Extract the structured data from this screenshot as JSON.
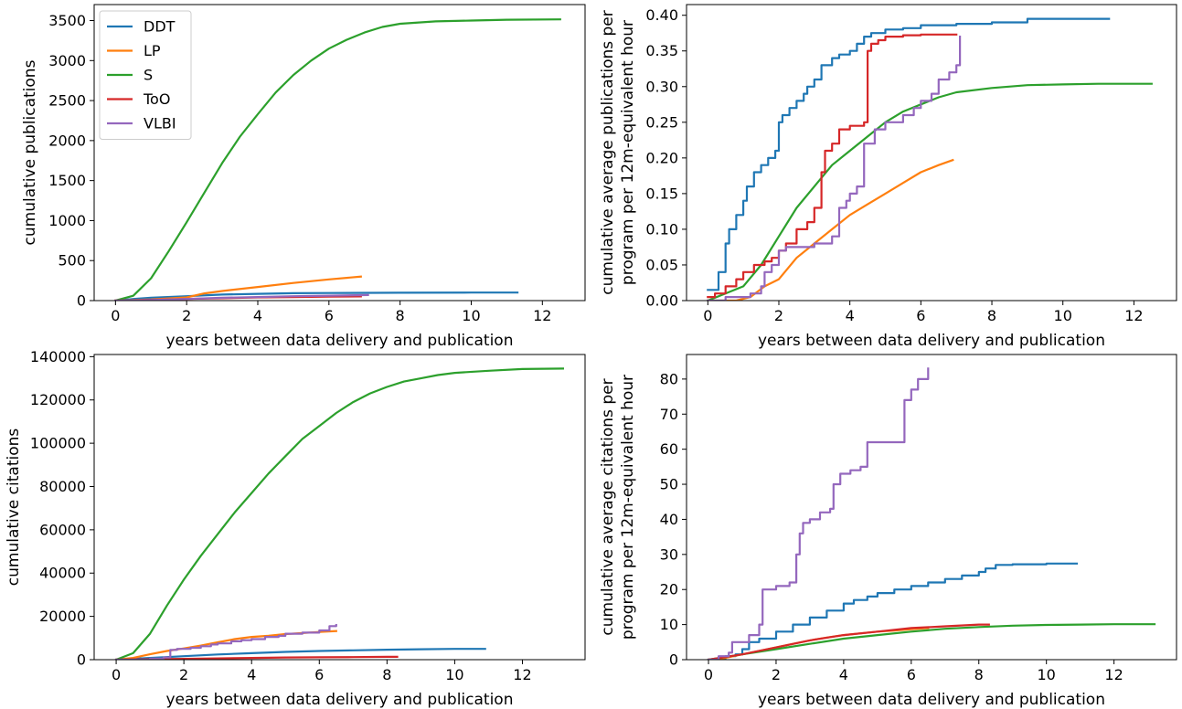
{
  "chart_data": [
    {
      "type": "line",
      "xlabel": "years between data delivery and publication",
      "ylabel": [
        "cumulative publications"
      ],
      "xlim": [
        -0.6,
        13.2
      ],
      "ylim": [
        0,
        3700
      ],
      "xticks": [
        0,
        2,
        4,
        6,
        8,
        10,
        12
      ],
      "xtick_labels": [
        "0",
        "2",
        "4",
        "6",
        "8",
        "10",
        "12"
      ],
      "yticks": [
        0,
        500,
        1000,
        1500,
        2000,
        2500,
        3000,
        3500
      ],
      "ytick_labels": [
        "0",
        "500",
        "1000",
        "1500",
        "2000",
        "2500",
        "3000",
        "3500"
      ],
      "legend": {
        "position": "top-left"
      },
      "series": [
        {
          "name": "DDT",
          "color": "#1f77b4",
          "step": false,
          "x": [
            0,
            0.5,
            1,
            2,
            3,
            4,
            5,
            6,
            8,
            10,
            11.3
          ],
          "y": [
            0,
            20,
            35,
            55,
            75,
            85,
            92,
            95,
            98,
            100,
            100
          ]
        },
        {
          "name": "LP",
          "color": "#ff7f0e",
          "step": false,
          "x": [
            0,
            1,
            2,
            2.5,
            3,
            4,
            5,
            6,
            6.9
          ],
          "y": [
            0,
            15,
            40,
            90,
            120,
            170,
            220,
            265,
            300
          ]
        },
        {
          "name": "S",
          "color": "#2ca02c",
          "step": false,
          "x": [
            0,
            0.5,
            1,
            1.5,
            2,
            2.5,
            3,
            3.5,
            4,
            4.5,
            5,
            5.5,
            6,
            6.5,
            7,
            7.5,
            8,
            9,
            10,
            11,
            12.5
          ],
          "y": [
            0,
            60,
            280,
            620,
            980,
            1350,
            1720,
            2050,
            2330,
            2600,
            2820,
            3000,
            3150,
            3260,
            3350,
            3420,
            3460,
            3490,
            3500,
            3510,
            3515
          ]
        },
        {
          "name": "ToO",
          "color": "#d62728",
          "step": false,
          "x": [
            0,
            1,
            2,
            3,
            4,
            5,
            6,
            6.9
          ],
          "y": [
            0,
            10,
            20,
            30,
            40,
            45,
            50,
            52
          ]
        },
        {
          "name": "VLBI",
          "color": "#9467bd",
          "step": false,
          "x": [
            0,
            1,
            2,
            3,
            4,
            5,
            6,
            7.1
          ],
          "y": [
            0,
            8,
            20,
            35,
            45,
            55,
            62,
            70
          ]
        }
      ]
    },
    {
      "type": "line",
      "xlabel": "years between data delivery and publication",
      "ylabel": [
        "cumulative average publications per",
        "program per 12m-equivalent hour"
      ],
      "xlim": [
        -0.6,
        13.2
      ],
      "ylim": [
        0,
        0.415
      ],
      "xticks": [
        0,
        2,
        4,
        6,
        8,
        10,
        12
      ],
      "xtick_labels": [
        "0",
        "2",
        "4",
        "6",
        "8",
        "10",
        "12"
      ],
      "yticks": [
        0,
        0.05,
        0.1,
        0.15,
        0.2,
        0.25,
        0.3,
        0.35,
        0.4
      ],
      "ytick_labels": [
        "0.00",
        "0.05",
        "0.10",
        "0.15",
        "0.20",
        "0.25",
        "0.30",
        "0.35",
        "0.40"
      ],
      "series": [
        {
          "name": "DDT",
          "color": "#1f77b4",
          "step": true,
          "x": [
            0,
            0.3,
            0.5,
            0.6,
            0.8,
            1.0,
            1.1,
            1.3,
            1.5,
            1.7,
            1.9,
            2.0,
            2.1,
            2.3,
            2.5,
            2.7,
            2.8,
            3.0,
            3.2,
            3.5,
            3.7,
            4.0,
            4.2,
            4.4,
            4.6,
            5.0,
            5.5,
            6.0,
            7.0,
            8.0,
            9.0,
            11.3
          ],
          "y": [
            0.015,
            0.04,
            0.08,
            0.1,
            0.12,
            0.14,
            0.16,
            0.18,
            0.19,
            0.2,
            0.21,
            0.25,
            0.26,
            0.27,
            0.28,
            0.29,
            0.3,
            0.31,
            0.33,
            0.34,
            0.345,
            0.35,
            0.36,
            0.37,
            0.375,
            0.38,
            0.382,
            0.386,
            0.388,
            0.39,
            0.395,
            0.395
          ]
        },
        {
          "name": "LP",
          "color": "#ff7f0e",
          "step": false,
          "x": [
            0,
            0.8,
            1.2,
            1.6,
            2.0,
            2.5,
            3.0,
            3.5,
            4.0,
            4.5,
            5.0,
            5.5,
            6.0,
            6.5,
            6.9
          ],
          "y": [
            0,
            0.0,
            0.005,
            0.02,
            0.03,
            0.06,
            0.08,
            0.1,
            0.12,
            0.135,
            0.15,
            0.165,
            0.18,
            0.19,
            0.197
          ]
        },
        {
          "name": "S",
          "color": "#2ca02c",
          "step": false,
          "x": [
            0,
            1,
            1.5,
            2,
            2.5,
            3,
            3.5,
            4,
            4.5,
            5,
            5.5,
            6,
            6.5,
            7,
            8,
            9,
            10,
            11,
            12.5
          ],
          "y": [
            0,
            0.02,
            0.05,
            0.09,
            0.13,
            0.16,
            0.19,
            0.21,
            0.23,
            0.25,
            0.265,
            0.275,
            0.285,
            0.292,
            0.298,
            0.302,
            0.303,
            0.304,
            0.304
          ]
        },
        {
          "name": "ToO",
          "color": "#d62728",
          "step": true,
          "x": [
            0,
            0.2,
            0.5,
            0.8,
            1.0,
            1.3,
            1.6,
            1.8,
            2.0,
            2.2,
            2.5,
            2.8,
            3.0,
            3.2,
            3.3,
            3.5,
            3.7,
            4.0,
            4.4,
            4.5,
            4.6,
            4.8,
            5.0,
            5.5,
            6.0,
            7.0
          ],
          "y": [
            0.005,
            0.01,
            0.02,
            0.03,
            0.04,
            0.05,
            0.055,
            0.06,
            0.07,
            0.08,
            0.1,
            0.11,
            0.13,
            0.18,
            0.21,
            0.22,
            0.24,
            0.245,
            0.25,
            0.35,
            0.36,
            0.365,
            0.37,
            0.372,
            0.373,
            0.373
          ]
        },
        {
          "name": "VLBI",
          "color": "#9467bd",
          "step": true,
          "x": [
            0,
            0.5,
            1.0,
            1.2,
            1.5,
            1.6,
            1.8,
            2.0,
            2.2,
            2.5,
            3.0,
            3.5,
            3.7,
            3.9,
            4.0,
            4.2,
            4.4,
            4.7,
            5.0,
            5.5,
            5.8,
            6.0,
            6.3,
            6.5,
            6.8,
            7.0,
            7.1
          ],
          "y": [
            0,
            0.005,
            0.005,
            0.01,
            0.02,
            0.04,
            0.05,
            0.07,
            0.075,
            0.075,
            0.08,
            0.09,
            0.13,
            0.14,
            0.15,
            0.16,
            0.22,
            0.24,
            0.25,
            0.26,
            0.27,
            0.28,
            0.29,
            0.31,
            0.32,
            0.33,
            0.37
          ]
        }
      ]
    },
    {
      "type": "line",
      "xlabel": "years between data delivery and publication",
      "ylabel": [
        "cumulative citations"
      ],
      "xlim": [
        -0.65,
        13.85
      ],
      "ylim": [
        0,
        141000
      ],
      "xticks": [
        0,
        2,
        4,
        6,
        8,
        10,
        12
      ],
      "xtick_labels": [
        "0",
        "2",
        "4",
        "6",
        "8",
        "10",
        "12"
      ],
      "yticks": [
        0,
        20000,
        40000,
        60000,
        80000,
        100000,
        120000,
        140000
      ],
      "ytick_labels": [
        "0",
        "20000",
        "40000",
        "60000",
        "80000",
        "100000",
        "120000",
        "140000"
      ],
      "series": [
        {
          "name": "DDT",
          "color": "#1f77b4",
          "step": false,
          "x": [
            0,
            1,
            2,
            3,
            4,
            5,
            6,
            7,
            8,
            9,
            10,
            10.9
          ],
          "y": [
            0,
            800,
            1600,
            2400,
            3000,
            3600,
            4000,
            4300,
            4600,
            4800,
            5000,
            5000
          ]
        },
        {
          "name": "LP",
          "color": "#ff7f0e",
          "step": false,
          "x": [
            0,
            0.5,
            1,
            1.5,
            2,
            2.5,
            3,
            3.5,
            4,
            4.5,
            5,
            5.5,
            6,
            6.5
          ],
          "y": [
            0,
            800,
            2500,
            4000,
            5200,
            6500,
            8000,
            9500,
            10500,
            11000,
            11800,
            12300,
            12800,
            13200
          ]
        },
        {
          "name": "S",
          "color": "#2ca02c",
          "step": false,
          "x": [
            0,
            0.5,
            1,
            1.5,
            2,
            2.5,
            3,
            3.5,
            4,
            4.5,
            5,
            5.5,
            6,
            6.5,
            7,
            7.5,
            8,
            8.5,
            9,
            9.5,
            10,
            11,
            12,
            13.2
          ],
          "y": [
            0,
            3000,
            12000,
            25000,
            37000,
            48000,
            58000,
            68000,
            77000,
            86000,
            94000,
            102000,
            108000,
            114000,
            119000,
            123000,
            126000,
            128500,
            130000,
            131500,
            132500,
            133500,
            134300,
            134500
          ]
        },
        {
          "name": "ToO",
          "color": "#d62728",
          "step": false,
          "x": [
            0,
            1,
            2,
            3,
            4,
            5,
            6,
            7,
            8,
            8.3
          ],
          "y": [
            0,
            200,
            400,
            600,
            800,
            1000,
            1100,
            1200,
            1300,
            1300
          ]
        },
        {
          "name": "VLBI",
          "color": "#9467bd",
          "step": true,
          "x": [
            0,
            1.0,
            1.4,
            1.6,
            1.8,
            2.2,
            2.5,
            2.8,
            3.0,
            3.4,
            3.7,
            4.0,
            4.4,
            4.8,
            5.0,
            5.5,
            6.0,
            6.3,
            6.5
          ],
          "y": [
            0,
            500,
            1000,
            4500,
            5000,
            5500,
            6200,
            7000,
            7500,
            8500,
            9000,
            9500,
            10500,
            11000,
            12000,
            12500,
            13500,
            15500,
            16000
          ]
        }
      ]
    },
    {
      "type": "line",
      "xlabel": "years between data delivery and publication",
      "ylabel": [
        "cumulative average citations per",
        "program per 12m-equivalent hour"
      ],
      "xlim": [
        -0.65,
        13.85
      ],
      "ylim": [
        0,
        87
      ],
      "xticks": [
        0,
        2,
        4,
        6,
        8,
        10,
        12
      ],
      "xtick_labels": [
        "0",
        "2",
        "4",
        "6",
        "8",
        "10",
        "12"
      ],
      "yticks": [
        0,
        10,
        20,
        30,
        40,
        50,
        60,
        70,
        80
      ],
      "ytick_labels": [
        "0",
        "10",
        "20",
        "30",
        "40",
        "50",
        "60",
        "70",
        "80"
      ],
      "series": [
        {
          "name": "DDT",
          "color": "#1f77b4",
          "step": true,
          "x": [
            0,
            0.5,
            0.8,
            1.0,
            1.2,
            1.5,
            2.0,
            2.5,
            3.0,
            3.5,
            4.0,
            4.3,
            4.7,
            5.0,
            5.5,
            6.0,
            6.5,
            7.0,
            7.5,
            8.0,
            8.2,
            8.5,
            9.0,
            10.0,
            10.9
          ],
          "y": [
            0,
            1,
            1.5,
            3,
            5,
            6,
            8,
            10,
            12,
            14,
            16,
            17,
            18,
            19,
            20,
            21,
            22,
            23,
            24,
            25,
            26,
            27,
            27.2,
            27.4,
            27.4
          ]
        },
        {
          "name": "LP",
          "color": "#ff7f0e",
          "step": false,
          "x": [
            0,
            0.5,
            1,
            1.5,
            2,
            2.5,
            3,
            3.5,
            4,
            4.5,
            5,
            5.5,
            6,
            6.5
          ],
          "y": [
            0,
            0.5,
            1.5,
            2.5,
            3.5,
            4.5,
            5.5,
            6.3,
            7,
            7.5,
            8,
            8.3,
            8.7,
            9
          ]
        },
        {
          "name": "S",
          "color": "#2ca02c",
          "step": false,
          "x": [
            0,
            1,
            2,
            3,
            4,
            5,
            6,
            7,
            8,
            9,
            10,
            11,
            12,
            13.2
          ],
          "y": [
            0,
            1.5,
            3,
            4.5,
            6,
            7,
            8,
            8.8,
            9.3,
            9.7,
            9.9,
            10,
            10.1,
            10.1
          ]
        },
        {
          "name": "ToO",
          "color": "#d62728",
          "step": false,
          "x": [
            0,
            1,
            2,
            3,
            4,
            5,
            6,
            7,
            8,
            8.3
          ],
          "y": [
            0,
            1.5,
            3.5,
            5.5,
            7,
            8,
            9,
            9.5,
            10,
            10
          ]
        },
        {
          "name": "VLBI",
          "color": "#9467bd",
          "step": true,
          "x": [
            0,
            0.3,
            0.6,
            0.7,
            1.2,
            1.5,
            1.6,
            2.0,
            2.4,
            2.6,
            2.7,
            2.8,
            3.0,
            3.3,
            3.6,
            3.7,
            3.9,
            4.2,
            4.5,
            4.7,
            5.0,
            5.4,
            5.7,
            5.8,
            6.0,
            6.2,
            6.5
          ],
          "y": [
            0,
            1,
            2,
            5,
            7,
            10,
            20,
            21,
            22,
            30,
            36,
            39,
            40,
            42,
            43,
            50,
            53,
            54,
            55,
            62,
            62,
            62,
            62,
            74,
            77,
            80,
            83
          ]
        }
      ]
    }
  ]
}
